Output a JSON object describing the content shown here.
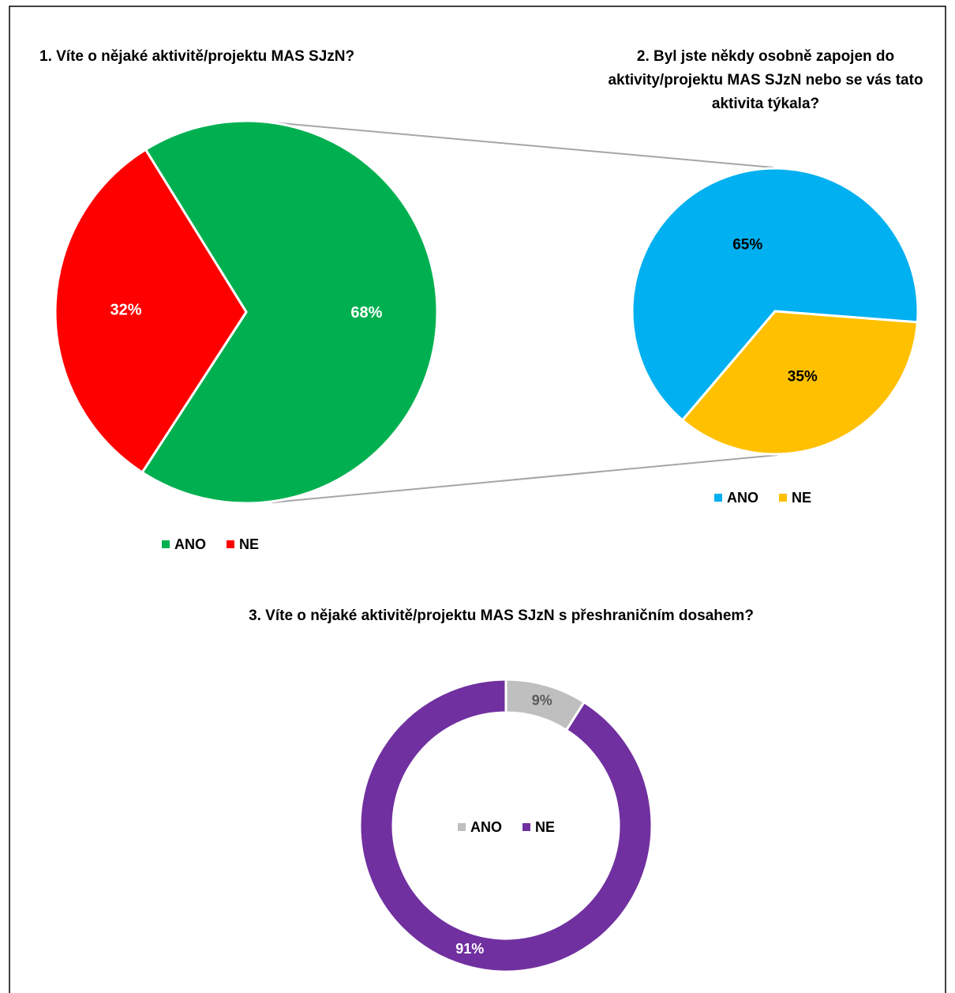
{
  "chart_data": [
    {
      "type": "pie",
      "title": "1. Víte o nějaké aktivitě/projektu MAS SJzN?",
      "categories": [
        "ANO",
        "NE"
      ],
      "values": [
        68,
        32
      ],
      "value_labels": [
        "68%",
        "32%"
      ],
      "colors": [
        "#00b050",
        "#ff0000"
      ]
    },
    {
      "type": "pie",
      "title": "2. Byl jste někdy osobně zapojen do aktivity/projektu MAS SJzN nebo se vás tato aktivita týkala?",
      "categories": [
        "ANO",
        "NE"
      ],
      "values": [
        65,
        35
      ],
      "value_labels": [
        "65%",
        "35%"
      ],
      "colors": [
        "#00b0f0",
        "#ffc000"
      ]
    },
    {
      "type": "donut",
      "title": "3. Víte o nějaké aktivitě/projektu MAS SJzN s přeshraničním dosahem?",
      "categories": [
        "ANO",
        "NE"
      ],
      "values": [
        9,
        91
      ],
      "value_labels": [
        "9%",
        "91%"
      ],
      "colors": [
        "#bfbfbf",
        "#7030a0"
      ]
    }
  ]
}
